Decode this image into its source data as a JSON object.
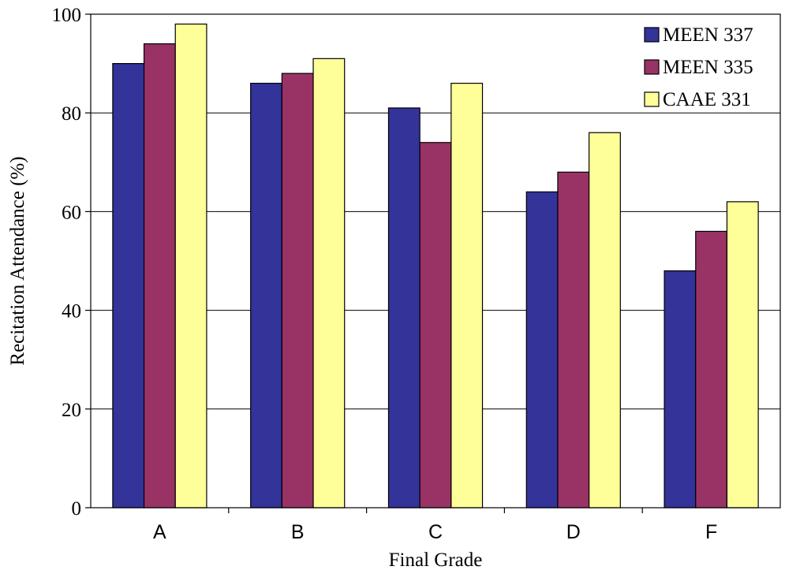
{
  "chart_data": {
    "type": "bar",
    "categories": [
      "A",
      "B",
      "C",
      "D",
      "F"
    ],
    "series": [
      {
        "name": "MEEN 337",
        "values": [
          90,
          86,
          81,
          64,
          48
        ],
        "color": "#333399"
      },
      {
        "name": "MEEN 335",
        "values": [
          94,
          88,
          74,
          68,
          56
        ],
        "color": "#993366"
      },
      {
        "name": "CAAE 331",
        "values": [
          98,
          91,
          86,
          76,
          62
        ],
        "color": "#ffff99"
      }
    ],
    "xlabel": "Final Grade",
    "ylabel": "Recitation Attendance (%)",
    "ylim": [
      0,
      100
    ],
    "yticks": [
      0,
      20,
      40,
      60,
      80,
      100
    ],
    "grid": true,
    "legend": "top-right"
  }
}
